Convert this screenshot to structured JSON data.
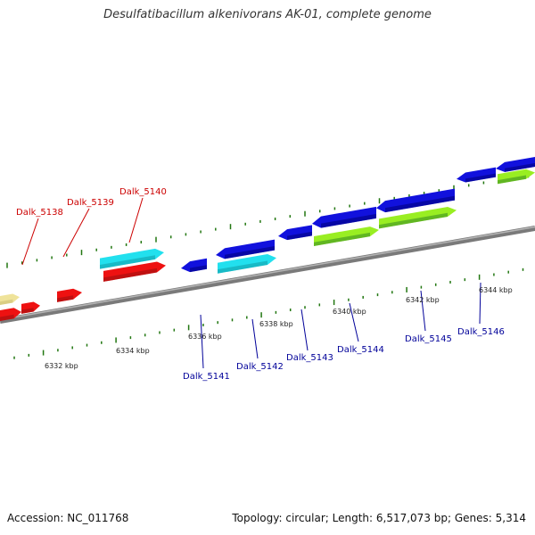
{
  "title": "Desulfatibacillum alkenivorans AK-01, complete genome",
  "footer": {
    "accession": "Accession: NC_011768",
    "summary": "Topology: circular; Length: 6,517,073 bp; Genes: 5,314"
  },
  "scale": {
    "unit": "kbp",
    "labels": [
      "6332 kbp",
      "6334 kbp",
      "6336 kbp",
      "6338 kbp",
      "6340 kbp",
      "6342 kbp",
      "6344 kbp"
    ]
  },
  "colors": {
    "backbone": "#8c8c8c",
    "red_feature": "#ee1111",
    "blue_feature": "#1111dd",
    "cyan_feature": "#22e0ee",
    "lime_feature": "#99ee22",
    "green_feature": "#338822",
    "tan_feature": "#efe39a",
    "tick": "#227711",
    "label_red": "#cc0000",
    "label_blue": "#000099"
  },
  "genes": [
    {
      "name": "Dalk_5138",
      "color": "red"
    },
    {
      "name": "Dalk_5139",
      "color": "red"
    },
    {
      "name": "Dalk_5140",
      "color": "red"
    },
    {
      "name": "Dalk_5141",
      "color": "blue"
    },
    {
      "name": "Dalk_5142",
      "color": "blue"
    },
    {
      "name": "Dalk_5143",
      "color": "blue"
    },
    {
      "name": "Dalk_5144",
      "color": "blue"
    },
    {
      "name": "Dalk_5145",
      "color": "blue"
    },
    {
      "name": "Dalk_5146",
      "color": "blue"
    }
  ]
}
